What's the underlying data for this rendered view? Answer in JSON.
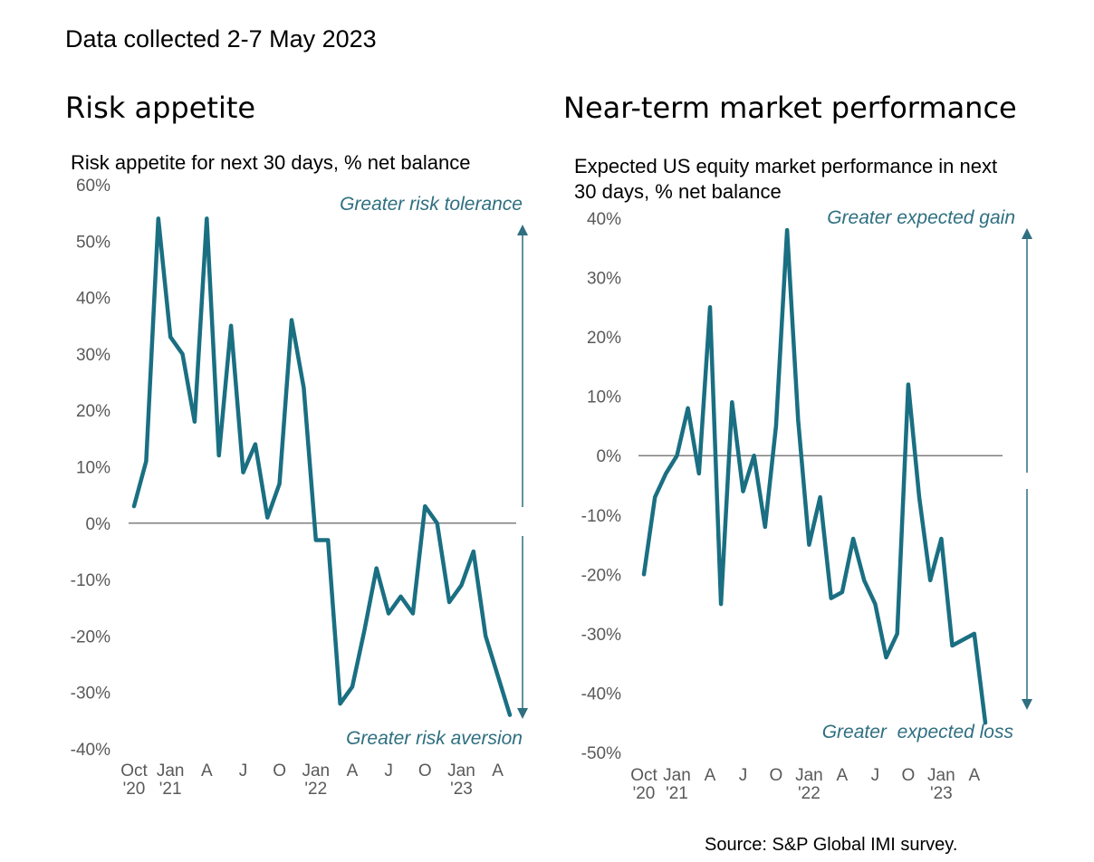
{
  "header": {
    "date_text": "Data collected 2-7 May 2023"
  },
  "source": "Source: S&P Global IMI survey.",
  "colors": {
    "series": "#1a6f82",
    "zero_line": "#7f7f7f",
    "arrow": "#2e6f80",
    "annotation": "#2e6f80"
  },
  "chart_data": [
    {
      "type": "line",
      "panel_title": "Risk appetite",
      "title": "Risk appetite for next 30 days, % net balance",
      "ylim": [
        -40,
        60
      ],
      "yticks": [
        "60%",
        "50%",
        "40%",
        "30%",
        "20%",
        "10%",
        "0%",
        "-10%",
        "-20%",
        "-30%",
        "-40%"
      ],
      "ytick_values": [
        60,
        50,
        40,
        30,
        20,
        10,
        0,
        -10,
        -20,
        -30,
        -40
      ],
      "xticks": [
        {
          "i": 0,
          "l1": "Oct",
          "l2": "'20"
        },
        {
          "i": 3,
          "l1": "Jan",
          "l2": "'21"
        },
        {
          "i": 6,
          "l1": "A",
          "l2": ""
        },
        {
          "i": 9,
          "l1": "J",
          "l2": ""
        },
        {
          "i": 12,
          "l1": "O",
          "l2": ""
        },
        {
          "i": 15,
          "l1": "Jan",
          "l2": "'22"
        },
        {
          "i": 18,
          "l1": "A",
          "l2": ""
        },
        {
          "i": 21,
          "l1": "J",
          "l2": ""
        },
        {
          "i": 24,
          "l1": "O",
          "l2": ""
        },
        {
          "i": 27,
          "l1": "Jan",
          "l2": "'23"
        },
        {
          "i": 30,
          "l1": "A",
          "l2": ""
        }
      ],
      "x_count": 32,
      "values": [
        3,
        11,
        54,
        33,
        30,
        18,
        54,
        12,
        35,
        9,
        14,
        1,
        7,
        36,
        24,
        -3,
        -3,
        -32,
        -29,
        -19,
        -8,
        -16,
        -13,
        -16,
        3,
        0,
        -14,
        -11,
        -5,
        -20,
        -27,
        -34
      ],
      "annotation_top": "Greater risk tolerance",
      "annotation_bottom": "Greater risk aversion"
    },
    {
      "type": "line",
      "panel_title": "Near-term market performance",
      "title": "Expected US equity market performance in next 30 days, % net balance",
      "ylim": [
        -50,
        40
      ],
      "yticks": [
        "40%",
        "30%",
        "20%",
        "10%",
        "0%",
        "-10%",
        "-20%",
        "-30%",
        "-40%",
        "-50%"
      ],
      "ytick_values": [
        40,
        30,
        20,
        10,
        0,
        -10,
        -20,
        -30,
        -40,
        -50
      ],
      "xticks": [
        {
          "i": 0,
          "l1": "Oct",
          "l2": "'20"
        },
        {
          "i": 3,
          "l1": "Jan",
          "l2": "'21"
        },
        {
          "i": 6,
          "l1": "A",
          "l2": ""
        },
        {
          "i": 9,
          "l1": "J",
          "l2": ""
        },
        {
          "i": 12,
          "l1": "O",
          "l2": ""
        },
        {
          "i": 15,
          "l1": "Jan",
          "l2": "'22"
        },
        {
          "i": 18,
          "l1": "A",
          "l2": ""
        },
        {
          "i": 21,
          "l1": "J",
          "l2": ""
        },
        {
          "i": 24,
          "l1": "O",
          "l2": ""
        },
        {
          "i": 27,
          "l1": "Jan",
          "l2": "'23"
        },
        {
          "i": 30,
          "l1": "A",
          "l2": ""
        }
      ],
      "x_count": 32,
      "values": [
        -20,
        -7,
        -3,
        0,
        8,
        -3,
        25,
        -25,
        9,
        -6,
        0,
        -12,
        5,
        38,
        6,
        -15,
        -7,
        -24,
        -23,
        -14,
        -21,
        -25,
        -34,
        -30,
        12,
        -7,
        -21,
        -14,
        -32,
        -31,
        -30,
        -45
      ],
      "annotation_top": "Greater expected gain",
      "annotation_bottom": "Greater  expected loss"
    }
  ]
}
